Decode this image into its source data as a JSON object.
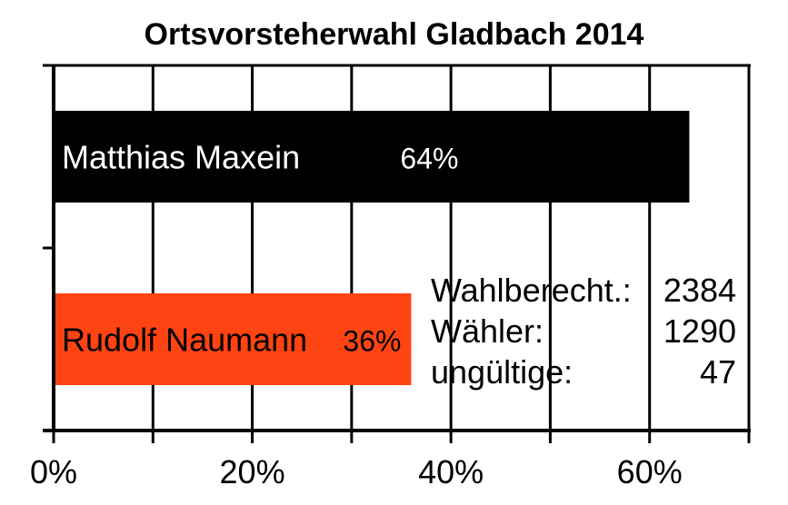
{
  "chart_data": {
    "type": "bar",
    "orientation": "horizontal",
    "title": "Ortsvorsteherwahl Gladbach 2014",
    "xlabel": "",
    "ylabel": "",
    "xlim": [
      0,
      70
    ],
    "x_ticks": [
      "0%",
      "20%",
      "40%",
      "60%"
    ],
    "grid": true,
    "categories": [
      "Matthias Maxein",
      "Rudolf Naumann"
    ],
    "values": [
      64,
      36
    ],
    "value_labels": [
      "64%",
      "36%"
    ],
    "colors": [
      "#000000",
      "#ff4413"
    ],
    "label_colors": [
      "#ffffff",
      "#000000"
    ]
  },
  "stats": [
    {
      "label": "Wahlberecht.:",
      "value": "2384"
    },
    {
      "label": "Wähler:",
      "value": "1290"
    },
    {
      "label": "ungültige:",
      "value": "47"
    }
  ]
}
